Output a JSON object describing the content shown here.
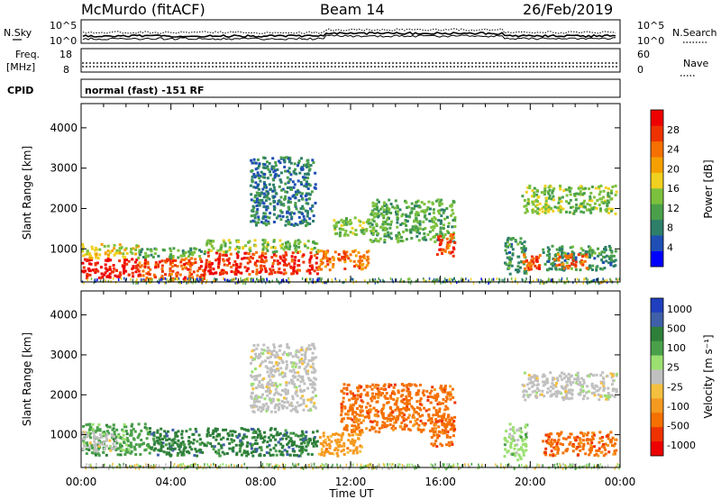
{
  "header": {
    "station": "McMurdo (fitACF)",
    "beam": "Beam 14",
    "date": "26/Feb/2019"
  },
  "param_panels": {
    "nsky_label": "N.Sky",
    "nsearch_label": "N.Search",
    "freq_label": "Freq.",
    "freq_unit": "[MHz]",
    "nave_label": "Nave",
    "cpid_label": "CPID",
    "cpid_text": "normal (fast) -151 RF",
    "noise_ticks": [
      "10^5",
      "10^0"
    ],
    "freq_ticks": [
      "18",
      "8"
    ],
    "nave_ticks": [
      "60",
      "0"
    ]
  },
  "colors": {
    "power_scale": [
      "#0000ff",
      "#1f4fb4",
      "#2e7f6a",
      "#4aa04a",
      "#7cc13d",
      "#f0d020",
      "#f5a000",
      "#f57000",
      "#ee3300",
      "#ee0000"
    ],
    "velocity_scale": [
      "#1f3fbf",
      "#3f5fa8",
      "#2e7f3a",
      "#4aa04a",
      "#9be070",
      "#c0c0c0",
      "#f5c040",
      "#f59a20",
      "#f57000",
      "#ee3300",
      "#ee0000"
    ]
  },
  "chart_data": [
    {
      "type": "heatmap",
      "name": "power",
      "ylabel": "Slant Range [km]",
      "ylim": [
        180,
        4600
      ],
      "yticks": [
        1000,
        2000,
        3000,
        4000
      ],
      "xlim": [
        0,
        24
      ],
      "colorbar_label": "Power [dB]",
      "colorbar_ticks": [
        4,
        8,
        12,
        16,
        20,
        24,
        28
      ],
      "colorbar_range": [
        0,
        32
      ],
      "blobs": [
        {
          "t0": 0.0,
          "t1": 2.5,
          "r0": 300,
          "r1": 800,
          "v": 30
        },
        {
          "t0": 0.0,
          "t1": 2.5,
          "r0": 800,
          "r1": 1150,
          "v": 18
        },
        {
          "t0": 2.5,
          "t1": 5.5,
          "r0": 250,
          "r1": 800,
          "v": 26
        },
        {
          "t0": 2.5,
          "t1": 5.5,
          "r0": 800,
          "r1": 1050,
          "v": 12
        },
        {
          "t0": 5.5,
          "t1": 10.5,
          "r0": 400,
          "r1": 950,
          "v": 28
        },
        {
          "t0": 5.5,
          "t1": 10.5,
          "r0": 950,
          "r1": 1250,
          "v": 14
        },
        {
          "t0": 10.5,
          "t1": 12.8,
          "r0": 500,
          "r1": 1000,
          "v": 24
        },
        {
          "t0": 11.2,
          "t1": 13.0,
          "r0": 1350,
          "r1": 1800,
          "v": 14
        },
        {
          "t0": 12.8,
          "t1": 16.6,
          "r0": 1200,
          "r1": 2250,
          "v": 12
        },
        {
          "t0": 15.8,
          "t1": 16.6,
          "r0": 850,
          "r1": 1400,
          "v": 26
        },
        {
          "t0": 7.5,
          "t1": 10.4,
          "r0": 1600,
          "r1": 3300,
          "v": 8
        },
        {
          "t0": 18.8,
          "t1": 19.8,
          "r0": 400,
          "r1": 1300,
          "v": 10
        },
        {
          "t0": 19.6,
          "t1": 20.4,
          "r0": 500,
          "r1": 900,
          "v": 26
        },
        {
          "t0": 19.6,
          "t1": 23.8,
          "r0": 1900,
          "r1": 2600,
          "v": 14
        },
        {
          "t0": 20.5,
          "t1": 23.8,
          "r0": 500,
          "r1": 1100,
          "v": 10
        },
        {
          "t0": 21.0,
          "t1": 22.5,
          "r0": 550,
          "r1": 900,
          "v": 24
        }
      ]
    },
    {
      "type": "heatmap",
      "name": "velocity",
      "ylabel": "Slant Range [km]",
      "ylim": [
        180,
        4600
      ],
      "yticks": [
        1000,
        2000,
        3000,
        4000
      ],
      "xlim": [
        0,
        24
      ],
      "xticks": [
        "00:00",
        "04:00",
        "08:00",
        "12:00",
        "16:00",
        "20:00",
        "00:00"
      ],
      "xlabel": "Time UT",
      "colorbar_label": "Velocity [m s⁻¹]",
      "colorbar_ticks": [
        "1000",
        "500",
        "100",
        "25",
        "-25",
        "-100",
        "-500",
        "-1000"
      ],
      "blobs": [
        {
          "t0": 0.0,
          "t1": 3.0,
          "r0": 500,
          "r1": 1300,
          "v": 3
        },
        {
          "t0": 0.0,
          "t1": 1.5,
          "r0": 600,
          "r1": 1100,
          "v": 5
        },
        {
          "t0": 3.0,
          "t1": 6.0,
          "r0": 500,
          "r1": 1200,
          "v": 2
        },
        {
          "t0": 6.0,
          "t1": 10.5,
          "r0": 500,
          "r1": 1200,
          "v": 2
        },
        {
          "t0": 7.5,
          "t1": 10.4,
          "r0": 1600,
          "r1": 3300,
          "v": 5
        },
        {
          "t0": 10.5,
          "t1": 12.5,
          "r0": 500,
          "r1": 1100,
          "v": 7
        },
        {
          "t0": 11.5,
          "t1": 16.6,
          "r0": 1100,
          "r1": 2300,
          "v": 8
        },
        {
          "t0": 15.5,
          "t1": 16.6,
          "r0": 700,
          "r1": 1500,
          "v": 8
        },
        {
          "t0": 18.8,
          "t1": 19.8,
          "r0": 400,
          "r1": 1300,
          "v": 4
        },
        {
          "t0": 19.6,
          "t1": 23.8,
          "r0": 1900,
          "r1": 2600,
          "v": 5
        },
        {
          "t0": 20.5,
          "t1": 23.8,
          "r0": 500,
          "r1": 1100,
          "v": 8
        }
      ]
    }
  ]
}
